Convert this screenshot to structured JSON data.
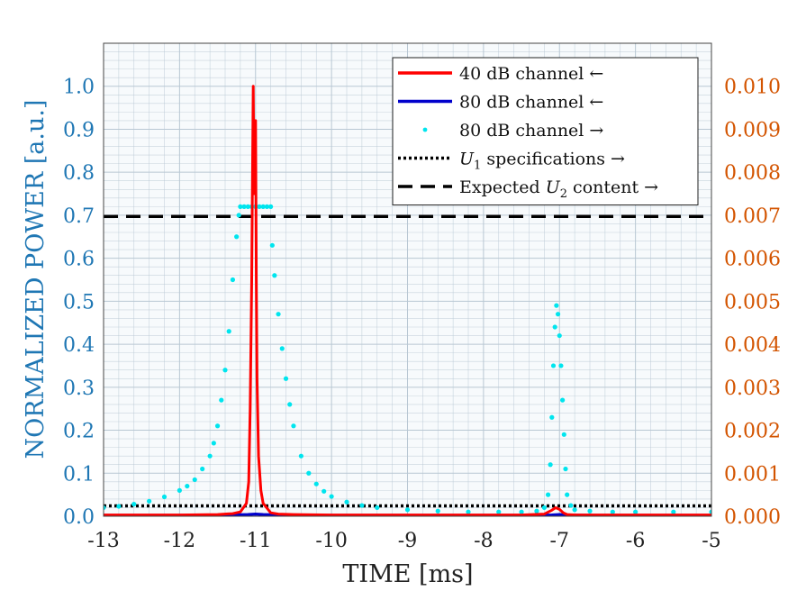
{
  "chart_data": {
    "type": "line",
    "xlabel": "TIME [ms]",
    "ylabel_left": "NORMALIZED POWER [a.u.]",
    "xlim": [
      -13,
      -5
    ],
    "ylim_left": [
      0,
      1.1
    ],
    "ylim_right": [
      0,
      0.011
    ],
    "xticks": [
      -13,
      -12,
      -11,
      -10,
      -9,
      -8,
      -7,
      -6,
      -5
    ],
    "xtick_labels": [
      "-13",
      "-12",
      "-11",
      "-10",
      "-9",
      "-8",
      "-7",
      "-6",
      "-5"
    ],
    "yticks_left": [
      0.0,
      0.1,
      0.2,
      0.3,
      0.4,
      0.5,
      0.6,
      0.7,
      0.8,
      0.9,
      1.0
    ],
    "ytick_labels_left": [
      "0.0",
      "0.1",
      "0.2",
      "0.3",
      "0.4",
      "0.5",
      "0.6",
      "0.7",
      "0.8",
      "0.9",
      "1.0"
    ],
    "yticks_right": [
      0.0,
      0.001,
      0.002,
      0.003,
      0.004,
      0.005,
      0.006,
      0.007,
      0.008,
      0.009,
      0.01
    ],
    "ytick_labels_right": [
      "0.000",
      "0.001",
      "0.002",
      "0.003",
      "0.004",
      "0.005",
      "0.006",
      "0.007",
      "0.008",
      "0.009",
      "0.010"
    ],
    "grid": true,
    "legend_position": "top-right",
    "colors": {
      "left_axis": "#1f77b4",
      "right_axis": "#d35400",
      "grid": "#b8c7d3",
      "forty_db": "#ff0000",
      "eighty_db_left": "#0000cc",
      "eighty_db_right": "#00e5ee",
      "threshold": "#000000"
    },
    "series": [
      {
        "name": "40 dB channel ←",
        "axis": "left",
        "style": "solid",
        "color": "#ff0000",
        "x": [
          -13.0,
          -12.0,
          -11.5,
          -11.3,
          -11.2,
          -11.12,
          -11.09,
          -11.07,
          -11.05,
          -11.04,
          -11.03,
          -11.02,
          -11.0,
          -10.99,
          -10.98,
          -10.96,
          -10.93,
          -10.9,
          -10.8,
          -10.7,
          -10.5,
          -10.0,
          -9.5,
          -9.0,
          -8.0,
          -7.5,
          -7.2,
          -7.1,
          -7.05,
          -7.0,
          -6.95,
          -6.9,
          -6.8,
          -6.5,
          -6.0,
          -5.0
        ],
        "y": [
          0.003,
          0.003,
          0.004,
          0.006,
          0.01,
          0.03,
          0.08,
          0.25,
          0.55,
          0.8,
          1.0,
          0.75,
          0.92,
          0.55,
          0.32,
          0.14,
          0.06,
          0.03,
          0.008,
          0.005,
          0.004,
          0.003,
          0.003,
          0.003,
          0.003,
          0.003,
          0.005,
          0.014,
          0.02,
          0.016,
          0.008,
          0.004,
          0.003,
          0.003,
          0.003,
          0.003
        ]
      },
      {
        "name": "80 dB channel ←",
        "axis": "left",
        "style": "solid",
        "color": "#0000cc",
        "x": [
          -13.0,
          -11.6,
          -11.3,
          -11.1,
          -11.0,
          -10.9,
          -10.7,
          -10.4,
          -10.0,
          -9.0,
          -7.3,
          -7.1,
          -7.0,
          -6.9,
          -6.5,
          -5.0
        ],
        "y": [
          0.002,
          0.002,
          0.003,
          0.004,
          0.005,
          0.004,
          0.003,
          0.002,
          0.002,
          0.002,
          0.002,
          0.003,
          0.004,
          0.003,
          0.002,
          0.002
        ]
      },
      {
        "name": "80 dB channel →",
        "axis": "right",
        "style": "dots",
        "color": "#00e5ee",
        "x": [
          -13.0,
          -12.8,
          -12.6,
          -12.4,
          -12.2,
          -12.0,
          -11.9,
          -11.8,
          -11.7,
          -11.6,
          -11.55,
          -11.5,
          -11.45,
          -11.4,
          -11.35,
          -11.3,
          -11.25,
          -11.22,
          -11.2,
          -11.15,
          -11.1,
          -11.05,
          -11.0,
          -10.95,
          -10.9,
          -10.85,
          -10.8,
          -10.78,
          -10.75,
          -10.7,
          -10.65,
          -10.6,
          -10.55,
          -10.5,
          -10.4,
          -10.3,
          -10.2,
          -10.1,
          -10.0,
          -9.8,
          -9.6,
          -9.4,
          -9.0,
          -8.6,
          -8.2,
          -7.8,
          -7.5,
          -7.3,
          -7.2,
          -7.15,
          -7.12,
          -7.1,
          -7.08,
          -7.06,
          -7.04,
          -7.02,
          -7.0,
          -6.98,
          -6.96,
          -6.94,
          -6.92,
          -6.9,
          -6.85,
          -6.8,
          -6.6,
          -6.3,
          -6.0,
          -5.5,
          -5.0
        ],
        "y": [
          0.0002,
          0.00023,
          0.00028,
          0.00035,
          0.00045,
          0.0006,
          0.0007,
          0.00085,
          0.0011,
          0.0014,
          0.0017,
          0.0021,
          0.0027,
          0.0034,
          0.0043,
          0.0055,
          0.0065,
          0.007,
          0.0072,
          0.0072,
          0.0072,
          0.0072,
          0.0072,
          0.0072,
          0.0072,
          0.0072,
          0.0072,
          0.0063,
          0.0056,
          0.0047,
          0.0039,
          0.0032,
          0.0026,
          0.0021,
          0.0014,
          0.001,
          0.00075,
          0.00058,
          0.00046,
          0.00033,
          0.00025,
          0.0002,
          0.00015,
          0.00012,
          0.0001,
          0.0001,
          0.0001,
          0.00012,
          0.0002,
          0.0005,
          0.0012,
          0.0023,
          0.0035,
          0.0044,
          0.0049,
          0.0047,
          0.0042,
          0.0035,
          0.0027,
          0.0019,
          0.0011,
          0.0005,
          0.00025,
          0.00015,
          0.00012,
          0.0001,
          0.0001,
          0.0001,
          0.0001
        ]
      },
      {
        "name": "U₁ specifications →",
        "axis": "right",
        "style": "dotted",
        "color": "#000000",
        "x": [
          -13,
          -5
        ],
        "y": [
          0.00024,
          0.00024
        ]
      },
      {
        "name": "Expected U₂ content →",
        "axis": "right",
        "style": "dashed",
        "color": "#000000",
        "x": [
          -13,
          -5
        ],
        "y": [
          0.00697,
          0.00697
        ]
      }
    ]
  },
  "legend": [
    {
      "key": "forty",
      "style": "solid",
      "color": "#ff0000",
      "text": "40 dB channel ←"
    },
    {
      "key": "eighty_left",
      "style": "solid",
      "color": "#0000cc",
      "text": "80 dB channel ←"
    },
    {
      "key": "eighty_right",
      "style": "dots",
      "color": "#00e5ee",
      "text": "80 dB channel →"
    },
    {
      "key": "u1",
      "style": "dotted",
      "color": "#000000",
      "pre": "",
      "var": "U",
      "sub": "1",
      "post": " specifications →"
    },
    {
      "key": "u2",
      "style": "dashed",
      "color": "#000000",
      "pre": "Expected ",
      "var": "U",
      "sub": "2",
      "post": " content →"
    }
  ]
}
